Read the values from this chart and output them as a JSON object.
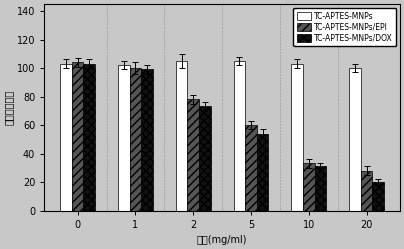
{
  "categories": [
    "0",
    "1",
    "2",
    "5",
    "10",
    "20"
  ],
  "series": [
    {
      "label": "TC-APTES-MNPs",
      "values": [
        103,
        102,
        105,
        105,
        103,
        100
      ],
      "errors": [
        3,
        3,
        5,
        3,
        3,
        3
      ],
      "hatch": "",
      "facecolor": "#ffffff",
      "edgecolor": "#000000"
    },
    {
      "label": "TC-APTES-MNPs/EPI",
      "values": [
        104,
        100,
        78,
        60,
        33,
        28
      ],
      "errors": [
        3,
        4,
        3,
        3,
        3,
        3
      ],
      "hatch": "////",
      "facecolor": "#555555",
      "edgecolor": "#000000"
    },
    {
      "label": "TC-APTES-MNPs/DOX",
      "values": [
        103,
        99,
        73,
        54,
        31,
        20
      ],
      "errors": [
        3,
        3,
        3,
        3,
        2,
        2
      ],
      "hatch": "xxxx",
      "facecolor": "#111111",
      "edgecolor": "#000000"
    }
  ],
  "xlabel": "浓度(mg/ml)",
  "ylabel": "相对细胞活力",
  "ylim": [
    0,
    145
  ],
  "yticks": [
    0,
    20,
    40,
    60,
    80,
    100,
    120,
    140
  ],
  "bar_width": 0.2,
  "figsize": [
    4.04,
    2.49
  ],
  "dpi": 100,
  "bg_color": "#c8c8c8"
}
